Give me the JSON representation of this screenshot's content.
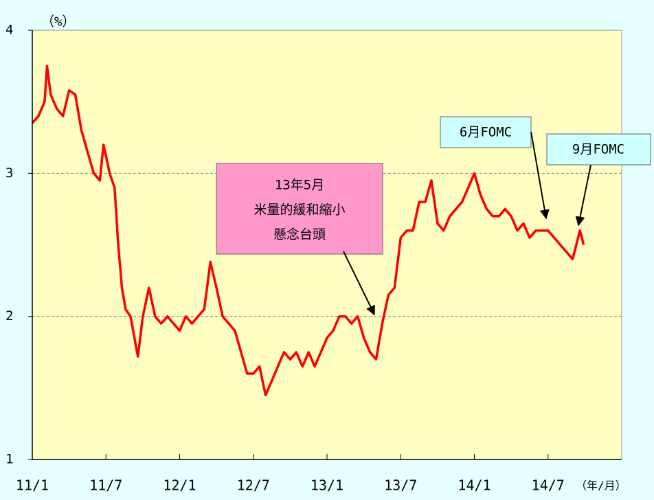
{
  "chart_data": {
    "type": "line",
    "y_unit_label": "（%）",
    "x_unit_label": "（年/月）",
    "xlim": [
      0,
      48
    ],
    "xticks": [
      {
        "value": 0,
        "label": "11/1"
      },
      {
        "value": 6,
        "label": "11/7"
      },
      {
        "value": 12,
        "label": "12/1"
      },
      {
        "value": 18,
        "label": "12/7"
      },
      {
        "value": 24,
        "label": "13/1"
      },
      {
        "value": 30,
        "label": "13/7"
      },
      {
        "value": 36,
        "label": "14/1"
      },
      {
        "value": 42,
        "label": "14/7"
      }
    ],
    "ylim": [
      1,
      4
    ],
    "yticks": [
      1,
      2,
      3,
      4
    ],
    "grid": true,
    "series": [
      {
        "color": "#ff0000",
        "x": [
          0,
          0.5,
          1,
          1.2,
          1.5,
          2,
          2.5,
          3,
          3.5,
          4,
          4.5,
          5,
          5.5,
          5.8,
          6.3,
          6.7,
          7,
          7.3,
          7.6,
          8,
          8.6,
          9,
          9.5,
          10,
          10.5,
          11,
          11.5,
          12,
          12.5,
          13,
          13.5,
          14,
          14.5,
          15,
          15.5,
          16,
          16.5,
          17,
          17.5,
          18,
          18.5,
          19,
          19.5,
          20,
          20.5,
          21,
          21.5,
          22,
          22.5,
          23,
          23.5,
          24,
          24.5,
          25,
          25.5,
          26,
          26.5,
          27,
          27.5,
          28,
          28.5,
          29,
          29.5,
          30,
          30.5,
          31,
          31.5,
          32,
          32.5,
          33,
          33.5,
          34,
          34.5,
          35,
          35.5,
          36,
          36.5,
          37,
          37.5,
          38,
          38.5,
          39,
          39.5,
          40,
          40.5,
          41,
          41.5,
          42,
          42.5,
          43,
          43.5,
          44,
          44.3,
          44.6,
          44.9
        ],
        "values": [
          3.35,
          3.4,
          3.5,
          3.75,
          3.55,
          3.45,
          3.4,
          3.58,
          3.55,
          3.3,
          3.15,
          3.0,
          2.95,
          3.2,
          3.0,
          2.9,
          2.5,
          2.2,
          2.05,
          2.0,
          1.72,
          2.0,
          2.2,
          2.0,
          1.95,
          2.0,
          1.95,
          1.9,
          2.0,
          1.95,
          2.0,
          2.05,
          2.38,
          2.2,
          2.0,
          1.95,
          1.9,
          1.75,
          1.6,
          1.6,
          1.65,
          1.45,
          1.55,
          1.65,
          1.75,
          1.7,
          1.75,
          1.65,
          1.75,
          1.65,
          1.75,
          1.85,
          1.9,
          2.0,
          2.0,
          1.95,
          2.0,
          1.85,
          1.75,
          1.7,
          1.95,
          2.15,
          2.2,
          2.55,
          2.6,
          2.6,
          2.8,
          2.8,
          2.95,
          2.65,
          2.6,
          2.7,
          2.75,
          2.8,
          2.9,
          3.0,
          2.85,
          2.75,
          2.7,
          2.7,
          2.75,
          2.7,
          2.6,
          2.65,
          2.55,
          2.6,
          2.6,
          2.6,
          2.55,
          2.5,
          2.45,
          2.4,
          2.5,
          2.6,
          2.5
        ]
      }
    ],
    "annotations": [
      {
        "lines": [
          "13年5月",
          "米量的緩和縮小",
          "懸念台頭"
        ]
      },
      {
        "lines": [
          "6月FOMC"
        ]
      },
      {
        "lines": [
          "9月FOMC"
        ]
      }
    ]
  }
}
